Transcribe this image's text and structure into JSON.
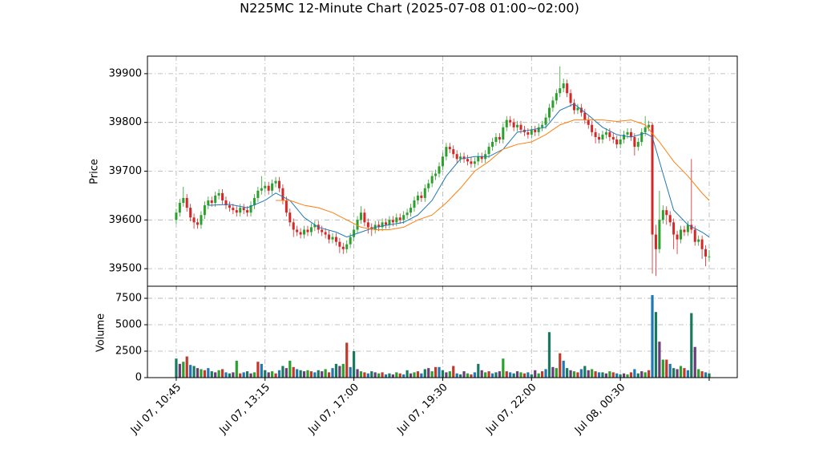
{
  "chart_data": [
    {
      "type": "candlestick",
      "title": "N225MC 12-Minute Chart (2025-07-08 01:00~02:00)",
      "ylabel": "Price",
      "up_color": "#2ca02c",
      "down_color": "#d62728",
      "open": [
        39600,
        39615,
        39635,
        39645,
        39625,
        39605,
        39595,
        39590,
        39610,
        39630,
        39640,
        39635,
        39650,
        39655,
        39640,
        39630,
        39625,
        39620,
        39615,
        39625,
        39620,
        39615,
        39630,
        39645,
        39660,
        39665,
        39670,
        39660,
        39675,
        39680,
        39665,
        39640,
        39615,
        39595,
        39580,
        39575,
        39570,
        39580,
        39575,
        39585,
        39590,
        39580,
        39575,
        39570,
        39560,
        39565,
        39555,
        39545,
        39540,
        39550,
        39565,
        39580,
        39600,
        39615,
        39595,
        39585,
        39580,
        39590,
        39585,
        39595,
        39590,
        39600,
        39595,
        39605,
        39600,
        39610,
        39615,
        39625,
        39640,
        39650,
        39645,
        39665,
        39675,
        39690,
        39695,
        39710,
        39730,
        39750,
        39745,
        39735,
        39725,
        39730,
        39725,
        39720,
        39715,
        39720,
        39730,
        39725,
        39735,
        39750,
        39760,
        39770,
        39765,
        39790,
        39805,
        39800,
        39790,
        39795,
        39785,
        39780,
        39775,
        39785,
        39780,
        39790,
        39795,
        39810,
        39830,
        39845,
        39860,
        39870,
        39880,
        39860,
        39840,
        39825,
        39830,
        39820,
        39805,
        39795,
        39780,
        39770,
        39765,
        39775,
        39780,
        39770,
        39765,
        39755,
        39765,
        39775,
        39780,
        39770,
        39750,
        39760,
        39780,
        39790,
        39795,
        39570,
        39540,
        39600,
        39620,
        39610,
        39595,
        39570,
        39560,
        39580,
        39575,
        39590,
        39580,
        39555,
        39560,
        39540,
        39525
      ],
      "high": [
        39623,
        39643,
        39668,
        39653,
        39633,
        39613,
        39603,
        39618,
        39638,
        39648,
        39648,
        39658,
        39663,
        39663,
        39648,
        39638,
        39633,
        39628,
        39633,
        39633,
        39628,
        39638,
        39653,
        39668,
        39690,
        39678,
        39678,
        39683,
        39688,
        39688,
        39673,
        39648,
        39623,
        39603,
        39588,
        39583,
        39588,
        39588,
        39593,
        39598,
        39598,
        39588,
        39583,
        39578,
        39573,
        39573,
        39563,
        39553,
        39558,
        39573,
        39588,
        39608,
        39628,
        39623,
        39603,
        39593,
        39598,
        39598,
        39603,
        39603,
        39608,
        39608,
        39613,
        39613,
        39618,
        39623,
        39633,
        39648,
        39658,
        39658,
        39673,
        39683,
        39698,
        39703,
        39718,
        39738,
        39758,
        39758,
        39753,
        39743,
        39738,
        39738,
        39733,
        39728,
        39728,
        39738,
        39738,
        39743,
        39758,
        39768,
        39778,
        39778,
        39798,
        39813,
        39813,
        39808,
        39803,
        39803,
        39793,
        39788,
        39793,
        39793,
        39798,
        39803,
        39818,
        39838,
        39853,
        39868,
        39915,
        39890,
        39888,
        39868,
        39848,
        39838,
        39838,
        39828,
        39813,
        39803,
        39788,
        39778,
        39783,
        39788,
        39788,
        39778,
        39773,
        39773,
        39783,
        39788,
        39788,
        39778,
        39768,
        39788,
        39813,
        39803,
        39800,
        39590,
        39660,
        39630,
        39628,
        39618,
        39603,
        39578,
        39588,
        39588,
        39598,
        39725,
        39588,
        39568,
        39568,
        39548,
        39538
      ],
      "low": [
        39592,
        39607,
        39627,
        39617,
        39597,
        39582,
        39582,
        39582,
        39602,
        39622,
        39627,
        39627,
        39642,
        39632,
        39622,
        39617,
        39612,
        39607,
        39607,
        39612,
        39607,
        39607,
        39622,
        39637,
        39652,
        39657,
        39652,
        39652,
        39667,
        39657,
        39632,
        39607,
        39587,
        39565,
        39567,
        39562,
        39562,
        39567,
        39567,
        39577,
        39572,
        39567,
        39562,
        39552,
        39552,
        39547,
        39532,
        39530,
        39532,
        39542,
        39557,
        39572,
        39592,
        39587,
        39572,
        39567,
        39572,
        39577,
        39577,
        39582,
        39582,
        39587,
        39587,
        39592,
        39592,
        39602,
        39607,
        39617,
        39632,
        39637,
        39637,
        39657,
        39667,
        39682,
        39687,
        39702,
        39722,
        39737,
        39727,
        39717,
        39717,
        39717,
        39712,
        39707,
        39707,
        39712,
        39717,
        39717,
        39727,
        39742,
        39752,
        39757,
        39757,
        39782,
        39792,
        39782,
        39782,
        39777,
        39772,
        39767,
        39767,
        39772,
        39772,
        39782,
        39787,
        39802,
        39822,
        39837,
        39852,
        39862,
        39852,
        39832,
        39817,
        39817,
        39812,
        39797,
        39787,
        39772,
        39757,
        39757,
        39757,
        39767,
        39762,
        39757,
        39747,
        39747,
        39757,
        39767,
        39762,
        39732,
        39742,
        39752,
        39772,
        39782,
        39490,
        39485,
        39532,
        39592,
        39590,
        39587,
        39540,
        39530,
        39552,
        39567,
        39567,
        39572,
        39547,
        39547,
        39520,
        39505,
        39515
      ],
      "close": [
        39615,
        39635,
        39645,
        39625,
        39605,
        39595,
        39590,
        39610,
        39630,
        39640,
        39635,
        39650,
        39655,
        39640,
        39630,
        39625,
        39620,
        39615,
        39625,
        39620,
        39615,
        39630,
        39645,
        39660,
        39665,
        39670,
        39660,
        39675,
        39680,
        39665,
        39640,
        39615,
        39595,
        39580,
        39575,
        39570,
        39580,
        39575,
        39585,
        39590,
        39580,
        39575,
        39570,
        39560,
        39565,
        39555,
        39545,
        39540,
        39550,
        39565,
        39580,
        39600,
        39615,
        39595,
        39585,
        39580,
        39590,
        39585,
        39595,
        39590,
        39600,
        39595,
        39605,
        39600,
        39610,
        39615,
        39625,
        39640,
        39650,
        39645,
        39665,
        39675,
        39690,
        39695,
        39710,
        39730,
        39750,
        39745,
        39735,
        39725,
        39730,
        39725,
        39720,
        39715,
        39720,
        39730,
        39725,
        39735,
        39750,
        39760,
        39770,
        39765,
        39790,
        39805,
        39800,
        39790,
        39795,
        39785,
        39780,
        39775,
        39785,
        39780,
        39790,
        39795,
        39810,
        39830,
        39845,
        39860,
        39870,
        39880,
        39860,
        39840,
        39825,
        39830,
        39820,
        39805,
        39795,
        39780,
        39770,
        39765,
        39775,
        39780,
        39770,
        39765,
        39755,
        39765,
        39775,
        39780,
        39770,
        39750,
        39760,
        39780,
        39790,
        39795,
        39570,
        39540,
        39600,
        39620,
        39610,
        39595,
        39570,
        39560,
        39580,
        39575,
        39590,
        39580,
        39555,
        39560,
        39540,
        39525,
        39525
      ],
      "series": [
        {
          "color": "#1f77b4",
          "x": [
            9,
            15,
            20,
            25,
            28,
            32,
            36,
            40,
            45,
            48,
            52,
            56,
            60,
            64,
            68,
            72,
            76,
            80,
            84,
            88,
            92,
            96,
            100,
            104,
            108,
            112,
            116,
            120,
            124,
            128,
            132,
            134,
            136,
            140,
            144,
            148,
            150
          ],
          "values": [
            39630,
            39632,
            39625,
            39640,
            39655,
            39640,
            39605,
            39585,
            39575,
            39565,
            39575,
            39585,
            39590,
            39595,
            39610,
            39640,
            39690,
            39725,
            39730,
            39730,
            39745,
            39780,
            39785,
            39790,
            39825,
            39838,
            39815,
            39790,
            39775,
            39770,
            39778,
            39770,
            39720,
            39620,
            39590,
            39575,
            39565
          ]
        },
        {
          "color": "#ff7f0e",
          "x": [
            28,
            32,
            36,
            40,
            44,
            48,
            52,
            56,
            60,
            64,
            68,
            72,
            76,
            80,
            84,
            88,
            92,
            96,
            100,
            104,
            108,
            112,
            116,
            120,
            124,
            128,
            132,
            136,
            140,
            144,
            148,
            150
          ],
          "values": [
            39640,
            39640,
            39630,
            39625,
            39615,
            39600,
            39585,
            39580,
            39580,
            39585,
            39600,
            39610,
            39635,
            39665,
            39700,
            39720,
            39745,
            39755,
            39760,
            39775,
            39795,
            39805,
            39805,
            39805,
            39802,
            39805,
            39795,
            39760,
            39720,
            39690,
            39655,
            39640
          ]
        }
      ],
      "xlim": [
        -8.1,
        157.9
      ],
      "xticks": [
        0,
        25,
        50,
        75,
        100,
        125,
        150
      ],
      "ylim": [
        39464,
        39936
      ],
      "yticks": [
        39500,
        39600,
        39700,
        39800,
        39900
      ],
      "grid": true
    },
    {
      "type": "bar",
      "ylabel": "Volume",
      "colors": [
        "#1a7a5e",
        "#6a3d7a",
        "#2ca02c",
        "#c0392b",
        "#1f77b4"
      ],
      "values": [
        1800,
        1300,
        1500,
        2000,
        1200,
        1100,
        900,
        800,
        700,
        900,
        600,
        500,
        700,
        800,
        500,
        400,
        500,
        1600,
        400,
        500,
        600,
        400,
        500,
        1500,
        1300,
        700,
        500,
        600,
        400,
        700,
        1100,
        900,
        1600,
        1000,
        800,
        700,
        600,
        700,
        600,
        500,
        700,
        600,
        800,
        500,
        900,
        1300,
        1100,
        1300,
        3300,
        1000,
        2500,
        800,
        600,
        500,
        400,
        600,
        500,
        400,
        500,
        300,
        400,
        300,
        500,
        400,
        300,
        700,
        400,
        500,
        600,
        400,
        800,
        900,
        600,
        1000,
        1000,
        700,
        500,
        600,
        1100,
        400,
        300,
        600,
        400,
        300,
        500,
        1300,
        700,
        500,
        600,
        400,
        500,
        600,
        1800,
        600,
        500,
        400,
        600,
        500,
        400,
        500,
        300,
        700,
        400,
        600,
        800,
        4300,
        1000,
        900,
        2300,
        1600,
        900,
        700,
        600,
        500,
        800,
        1100,
        700,
        800,
        600,
        500,
        500,
        400,
        600,
        500,
        400,
        300,
        400,
        300,
        500,
        800,
        400,
        600,
        500,
        700,
        7800,
        6200,
        3400,
        1700,
        1700,
        1300,
        900,
        800,
        1100,
        900,
        700,
        6100,
        2900,
        800,
        600,
        500,
        400
      ],
      "xlim": [
        -8.1,
        157.9
      ],
      "xticks": [
        {
          "value": 0,
          "label": "Jul 07, 10:45"
        },
        {
          "value": 25,
          "label": "Jul 07, 13:15"
        },
        {
          "value": 50,
          "label": "Jul 07, 17:00"
        },
        {
          "value": 75,
          "label": "Jul 07, 19:30"
        },
        {
          "value": 100,
          "label": "Jul 07, 22:00"
        },
        {
          "value": 125,
          "label": "Jul 08, 00:30"
        },
        150
      ],
      "ylim": [
        0,
        8640
      ],
      "yticks": [
        0,
        2500,
        5000,
        7500
      ],
      "grid": true
    }
  ]
}
